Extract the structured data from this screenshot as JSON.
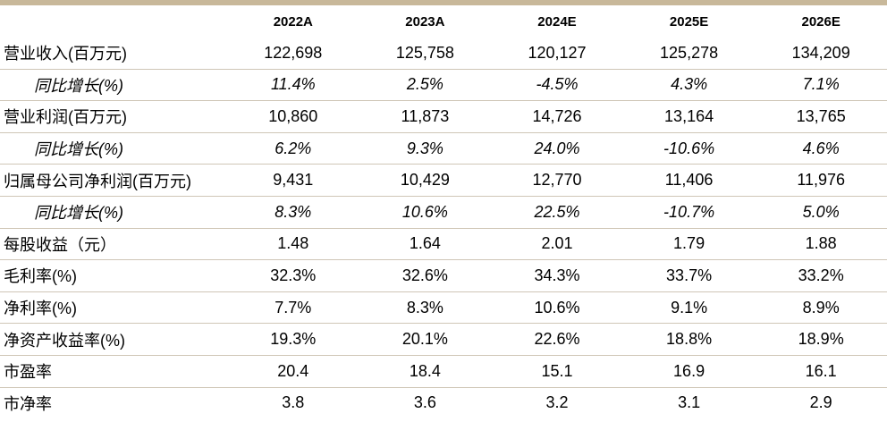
{
  "table": {
    "header_blank": "",
    "years": [
      "2022A",
      "2023A",
      "2024E",
      "2025E",
      "2026E"
    ],
    "rows": [
      {
        "label": "营业收入(百万元)",
        "values": [
          "122,698",
          "125,758",
          "120,127",
          "125,278",
          "134,209"
        ],
        "growth": false
      },
      {
        "label": "同比增长(%)",
        "values": [
          "11.4%",
          "2.5%",
          "-4.5%",
          "4.3%",
          "7.1%"
        ],
        "growth": true
      },
      {
        "label": "营业利润(百万元)",
        "values": [
          "10,860",
          "11,873",
          "14,726",
          "13,164",
          "13,765"
        ],
        "growth": false
      },
      {
        "label": "同比增长(%)",
        "values": [
          "6.2%",
          "9.3%",
          "24.0%",
          "-10.6%",
          "4.6%"
        ],
        "growth": true
      },
      {
        "label": "归属母公司净利润(百万元)",
        "values": [
          "9,431",
          "10,429",
          "12,770",
          "11,406",
          "11,976"
        ],
        "growth": false
      },
      {
        "label": "同比增长(%)",
        "values": [
          "8.3%",
          "10.6%",
          "22.5%",
          "-10.7%",
          "5.0%"
        ],
        "growth": true
      },
      {
        "label": "每股收益（元）",
        "values": [
          "1.48",
          "1.64",
          "2.01",
          "1.79",
          "1.88"
        ],
        "growth": false
      },
      {
        "label": "毛利率(%)",
        "values": [
          "32.3%",
          "32.6%",
          "34.3%",
          "33.7%",
          "33.2%"
        ],
        "growth": false
      },
      {
        "label": "净利率(%)",
        "values": [
          "7.7%",
          "8.3%",
          "10.6%",
          "9.1%",
          "8.9%"
        ],
        "growth": false
      },
      {
        "label": "净资产收益率(%)",
        "values": [
          "19.3%",
          "20.1%",
          "22.6%",
          "18.8%",
          "18.9%"
        ],
        "growth": false
      },
      {
        "label": "市盈率",
        "values": [
          "20.4",
          "18.4",
          "15.1",
          "16.9",
          "16.1"
        ],
        "growth": false
      },
      {
        "label": "市净率",
        "values": [
          "3.8",
          "3.6",
          "3.2",
          "3.1",
          "2.9"
        ],
        "growth": false
      }
    ]
  }
}
